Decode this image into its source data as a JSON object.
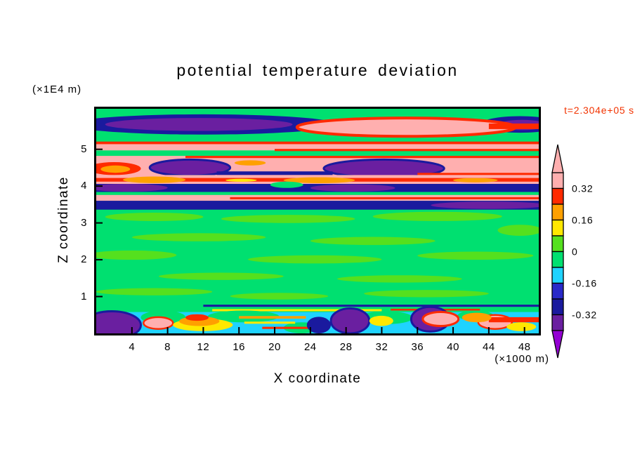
{
  "title": "potential temperature deviation",
  "time_label": "t=2.304e+05 s",
  "axes": {
    "x_title": "X coordinate",
    "x_units": "(×1000 m)",
    "z_title": "Z coordinate",
    "z_units": "(×1E4 m)"
  },
  "colors": {
    "time_label": "#F23300",
    "frame": "#000000",
    "background": "#FFFFFF"
  },
  "chart_data": {
    "type": "heatmap",
    "title": "potential temperature deviation",
    "xlabel": "X coordinate",
    "ylabel": "Z coordinate",
    "x_units": "×1000 m",
    "z_units": "×1E4 m",
    "time_annotation": "t=2.304e+05 s",
    "x_range": [
      0,
      49.6
    ],
    "z_range": [
      0,
      6.1
    ],
    "x_ticks": [
      4,
      8,
      12,
      16,
      20,
      24,
      28,
      32,
      36,
      40,
      44,
      48
    ],
    "z_ticks": [
      1,
      2,
      3,
      4,
      5
    ],
    "grid": false,
    "legend_position": "right-colorbar",
    "structure_note": "Horizontally layered wave/turbulence field: strong positive (pink/red) and negative (navy/purple) bands between z=3.4 and z=6, near-zero green interior from z=0.8 to z=3.4, and a thin turbulent mixed layer (cyan/purple/pink/yellow) below z=0.7.",
    "colorbar": {
      "levels": [
        -0.4,
        -0.32,
        -0.24,
        -0.16,
        -0.08,
        0,
        0.08,
        0.16,
        0.24,
        0.32,
        0.4
      ],
      "colors": [
        "#6A1FA0",
        "#1A1A9E",
        "#2929C8",
        "#1FD3FF",
        "#00E070",
        "#55E01E",
        "#FFE800",
        "#FFA000",
        "#FF2A00",
        "#FFAFAF"
      ],
      "under": "#9400D3",
      "over": "#FFAFAF",
      "labels": [
        "0.32",
        "0.16",
        "0",
        "-0.16",
        "-0.32"
      ],
      "label_levels": [
        0.32,
        0.16,
        0,
        -0.16,
        -0.32
      ]
    },
    "field_features": [
      {
        "t": "band",
        "x": [
          0,
          49.6
        ],
        "z": [
          0,
          6.1
        ],
        "v": -0.04
      },
      {
        "t": "blob",
        "x": [
          -3,
          27
        ],
        "z": [
          5.4,
          5.95
        ],
        "v": -0.28
      },
      {
        "t": "blob",
        "x": [
          1,
          22
        ],
        "z": [
          5.5,
          5.85
        ],
        "v": -0.38
      },
      {
        "t": "blob",
        "x": [
          43,
          52
        ],
        "z": [
          5.45,
          5.9
        ],
        "v": -0.28
      },
      {
        "t": "blob",
        "x": [
          45,
          50.5
        ],
        "z": [
          5.52,
          5.8
        ],
        "v": -0.38
      },
      {
        "t": "blob",
        "x": [
          22.5,
          47
        ],
        "z": [
          5.35,
          5.85
        ],
        "v": 0.36,
        "sv": 0.28,
        "sw": 4
      },
      {
        "t": "band",
        "x": [
          44,
          49.6
        ],
        "z": [
          5.55,
          5.7
        ],
        "v": 0.28
      },
      {
        "t": "band",
        "x": [
          0,
          49.6
        ],
        "z": [
          4.97,
          5.2
        ],
        "v": 0.36
      },
      {
        "t": "band",
        "x": [
          0,
          49.6
        ],
        "z": [
          5.14,
          5.21
        ],
        "v": 0.28
      },
      {
        "t": "band",
        "x": [
          20,
          49.6
        ],
        "z": [
          4.95,
          5.01
        ],
        "v": 0.28
      },
      {
        "t": "band",
        "x": [
          0,
          49.6
        ],
        "z": [
          4.28,
          4.82
        ],
        "v": 0.36
      },
      {
        "t": "band",
        "x": [
          10,
          49.6
        ],
        "z": [
          4.76,
          4.82
        ],
        "v": 0.28
      },
      {
        "t": "blob",
        "x": [
          6,
          15
        ],
        "z": [
          4.28,
          4.72
        ],
        "v": -0.38,
        "sv": -0.28,
        "sw": 3
      },
      {
        "t": "blob",
        "x": [
          25.5,
          39
        ],
        "z": [
          4.24,
          4.72
        ],
        "v": -0.38,
        "sv": -0.28,
        "sw": 3
      },
      {
        "t": "band",
        "x": [
          13.5,
          26.5
        ],
        "z": [
          4.3,
          4.4
        ],
        "v": -0.28
      },
      {
        "t": "blob",
        "x": [
          -1,
          5
        ],
        "z": [
          4.3,
          4.65
        ],
        "v": 0.28
      },
      {
        "t": "blob",
        "x": [
          0.5,
          3.8
        ],
        "z": [
          4.36,
          4.56
        ],
        "v": 0.2
      },
      {
        "t": "blob",
        "x": [
          15.5,
          19
        ],
        "z": [
          4.56,
          4.7
        ],
        "v": 0.2
      },
      {
        "t": "band",
        "x": [
          36,
          49.6
        ],
        "z": [
          4.3,
          4.36
        ],
        "v": 0.28
      },
      {
        "t": "band",
        "x": [
          0,
          49.6
        ],
        "z": [
          4.06,
          4.3
        ],
        "v": 0.36
      },
      {
        "t": "band",
        "x": [
          0,
          49.6
        ],
        "z": [
          4.12,
          4.22
        ],
        "v": 0.28
      },
      {
        "t": "blob",
        "x": [
          3,
          10
        ],
        "z": [
          4.08,
          4.26
        ],
        "v": 0.2
      },
      {
        "t": "blob",
        "x": [
          21,
          29
        ],
        "z": [
          4.08,
          4.24
        ],
        "v": 0.2
      },
      {
        "t": "blob",
        "x": [
          14.5,
          18
        ],
        "z": [
          4.12,
          4.2
        ],
        "v": 0.12
      },
      {
        "t": "blob",
        "x": [
          40,
          45
        ],
        "z": [
          4.1,
          4.22
        ],
        "v": 0.2
      },
      {
        "t": "band",
        "x": [
          0,
          49.6
        ],
        "z": [
          3.84,
          4.06
        ],
        "v": -0.28
      },
      {
        "t": "blob",
        "x": [
          -1,
          8
        ],
        "z": [
          3.85,
          4.06
        ],
        "v": -0.38
      },
      {
        "t": "blob",
        "x": [
          24,
          33.5
        ],
        "z": [
          3.85,
          4.05
        ],
        "v": -0.38
      },
      {
        "t": "blob",
        "x": [
          19.5,
          23.2
        ],
        "z": [
          3.95,
          4.12
        ],
        "v": -0.04
      },
      {
        "t": "band",
        "x": [
          0,
          49.6
        ],
        "z": [
          3.6,
          3.76
        ],
        "v": 0.36
      },
      {
        "t": "band",
        "x": [
          15,
          49.6
        ],
        "z": [
          3.64,
          3.7
        ],
        "v": 0.28
      },
      {
        "t": "band",
        "x": [
          0,
          49.6
        ],
        "z": [
          3.36,
          3.6
        ],
        "v": -0.28
      },
      {
        "t": "blob",
        "x": [
          37.5,
          50.5
        ],
        "z": [
          3.38,
          3.58
        ],
        "v": -0.38
      },
      {
        "t": "blob",
        "x": [
          1,
          12
        ],
        "z": [
          3.05,
          3.28
        ],
        "v": 0.04
      },
      {
        "t": "blob",
        "x": [
          14,
          29
        ],
        "z": [
          3.0,
          3.22
        ],
        "v": 0.04
      },
      {
        "t": "blob",
        "x": [
          31,
          45.5
        ],
        "z": [
          3.05,
          3.3
        ],
        "v": 0.04
      },
      {
        "t": "blob",
        "x": [
          45,
          50
        ],
        "z": [
          2.65,
          2.95
        ],
        "v": 0.04
      },
      {
        "t": "blob",
        "x": [
          4,
          19
        ],
        "z": [
          2.5,
          2.72
        ],
        "v": 0.04
      },
      {
        "t": "blob",
        "x": [
          24,
          38
        ],
        "z": [
          2.4,
          2.62
        ],
        "v": 0.04
      },
      {
        "t": "blob",
        "x": [
          -1,
          9
        ],
        "z": [
          2.0,
          2.25
        ],
        "v": 0.04
      },
      {
        "t": "blob",
        "x": [
          17,
          32
        ],
        "z": [
          1.9,
          2.12
        ],
        "v": 0.04
      },
      {
        "t": "blob",
        "x": [
          36,
          49
        ],
        "z": [
          2.0,
          2.22
        ],
        "v": 0.04
      },
      {
        "t": "blob",
        "x": [
          7,
          21
        ],
        "z": [
          1.45,
          1.65
        ],
        "v": 0.04
      },
      {
        "t": "blob",
        "x": [
          27,
          41
        ],
        "z": [
          1.38,
          1.58
        ],
        "v": 0.04
      },
      {
        "t": "blob",
        "x": [
          0,
          13
        ],
        "z": [
          1.03,
          1.23
        ],
        "v": 0.04
      },
      {
        "t": "blob",
        "x": [
          30,
          44
        ],
        "z": [
          0.98,
          1.18
        ],
        "v": 0.04
      },
      {
        "t": "blob",
        "x": [
          15,
          26
        ],
        "z": [
          0.92,
          1.1
        ],
        "v": 0.04
      },
      {
        "t": "band",
        "x": [
          12,
          49.6
        ],
        "z": [
          0.72,
          0.78
        ],
        "v": -0.28
      },
      {
        "t": "band",
        "x": [
          13,
          32
        ],
        "z": [
          0.6,
          0.66
        ],
        "v": 0.12
      },
      {
        "t": "band",
        "x": [
          33,
          43
        ],
        "z": [
          0.62,
          0.67
        ],
        "v": 0.28
      },
      {
        "t": "band",
        "x": [
          0,
          49.6
        ],
        "z": [
          0,
          0.58
        ],
        "v": -0.12
      },
      {
        "t": "blob",
        "x": [
          5,
          10
        ],
        "z": [
          0.25,
          0.62
        ],
        "v": -0.04
      },
      {
        "t": "blob",
        "x": [
          12.5,
          20.5
        ],
        "z": [
          0.3,
          0.62
        ],
        "v": -0.04
      },
      {
        "t": "blob",
        "x": [
          29.5,
          35.5
        ],
        "z": [
          0.25,
          0.6
        ],
        "v": -0.04
      },
      {
        "t": "blob",
        "x": [
          40.5,
          44.5
        ],
        "z": [
          0.35,
          0.62
        ],
        "v": -0.04
      },
      {
        "t": "blob",
        "x": [
          21,
          25
        ],
        "z": [
          0,
          0.3
        ],
        "v": -0.04
      },
      {
        "t": "blob",
        "x": [
          -1.5,
          5
        ],
        "z": [
          -0.15,
          0.6
        ],
        "v": -0.38,
        "sv": -0.28,
        "sw": 3
      },
      {
        "t": "blob",
        "x": [
          26.3,
          30.6
        ],
        "z": [
          0,
          0.68
        ],
        "v": -0.38,
        "sv": -0.28,
        "sw": 3
      },
      {
        "t": "blob",
        "x": [
          35.3,
          39.6
        ],
        "z": [
          0.05,
          0.72
        ],
        "v": -0.38,
        "sv": -0.28,
        "sw": 3
      },
      {
        "t": "blob",
        "x": [
          36.6,
          40.6
        ],
        "z": [
          0.2,
          0.58
        ],
        "v": 0.36,
        "sv": 0.28,
        "sw": 3
      },
      {
        "t": "blob",
        "x": [
          5.3,
          8.6
        ],
        "z": [
          0.12,
          0.44
        ],
        "v": 0.36,
        "sv": 0.28,
        "sw": 2.5
      },
      {
        "t": "blob",
        "x": [
          42.8,
          46.6
        ],
        "z": [
          0.12,
          0.5
        ],
        "v": 0.36,
        "sv": 0.28,
        "sw": 2.5
      },
      {
        "t": "blob",
        "x": [
          8.6,
          15.3
        ],
        "z": [
          0.06,
          0.4
        ],
        "v": 0.12
      },
      {
        "t": "blob",
        "x": [
          9.3,
          13.8
        ],
        "z": [
          0.2,
          0.46
        ],
        "v": 0.2
      },
      {
        "t": "blob",
        "x": [
          10,
          12.6
        ],
        "z": [
          0.34,
          0.52
        ],
        "v": 0.28
      },
      {
        "t": "band",
        "x": [
          16,
          23.5
        ],
        "z": [
          0.4,
          0.47
        ],
        "v": 0.2
      },
      {
        "t": "band",
        "x": [
          16.6,
          22.3
        ],
        "z": [
          0.26,
          0.32
        ],
        "v": 0.12
      },
      {
        "t": "band",
        "x": [
          44,
          49.6
        ],
        "z": [
          0.3,
          0.44
        ],
        "v": 0.28
      },
      {
        "t": "blob",
        "x": [
          41,
          44.3
        ],
        "z": [
          0.3,
          0.56
        ],
        "v": 0.2
      },
      {
        "t": "blob",
        "x": [
          30.6,
          33.3
        ],
        "z": [
          0.2,
          0.48
        ],
        "v": 0.12
      },
      {
        "t": "blob",
        "x": [
          46,
          49.3
        ],
        "z": [
          0.06,
          0.3
        ],
        "v": 0.12
      },
      {
        "t": "band",
        "x": [
          18.6,
          24.3
        ],
        "z": [
          0.12,
          0.18
        ],
        "v": 0.28
      },
      {
        "t": "blob",
        "x": [
          23.6,
          26.3
        ],
        "z": [
          0,
          0.45
        ],
        "v": -0.28
      }
    ]
  }
}
